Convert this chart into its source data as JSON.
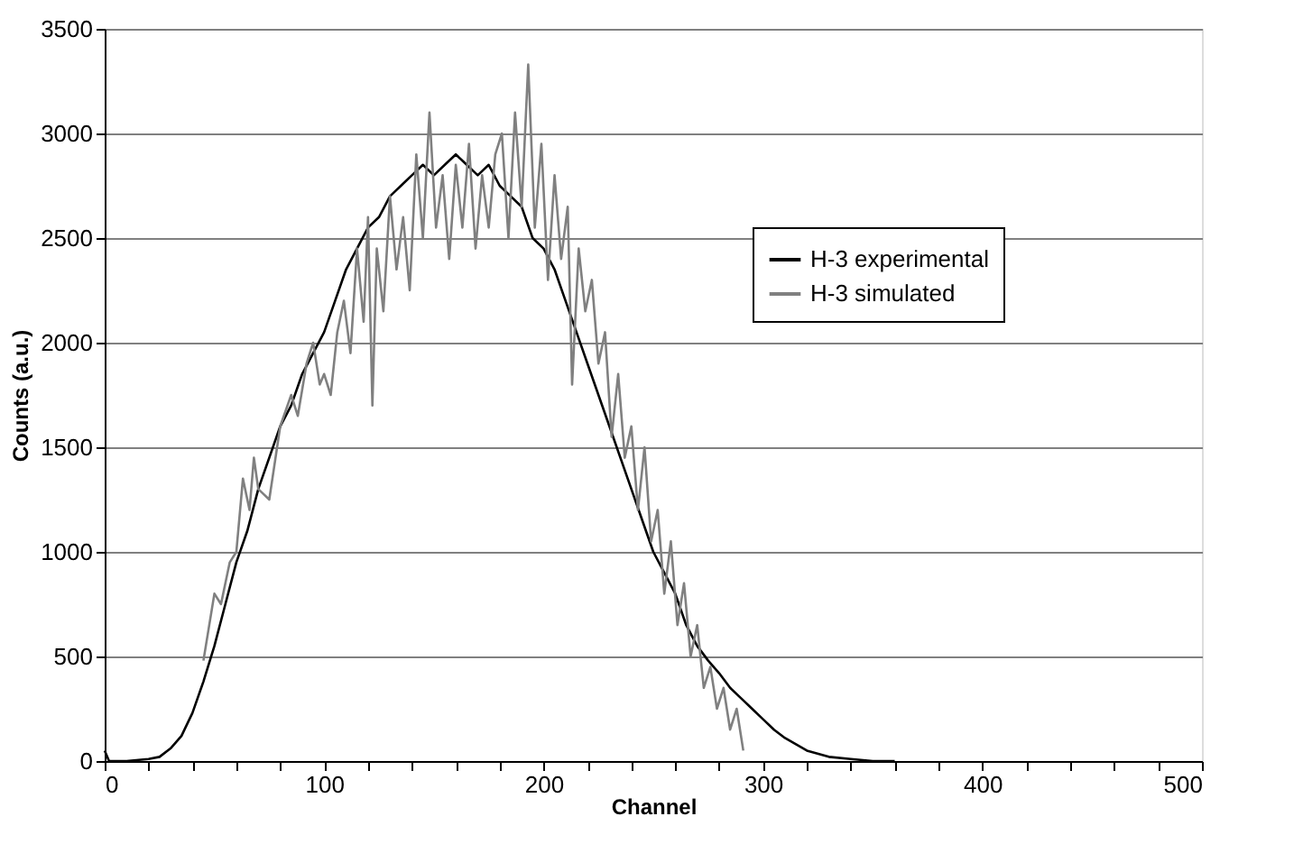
{
  "chart_data": {
    "type": "line",
    "xlabel": "Channel",
    "ylabel": "Counts (a.u.)",
    "xlim": [
      0,
      500
    ],
    "ylim": [
      0,
      3500
    ],
    "xticks": [
      0,
      {
        "value": 20,
        "label": null
      },
      {
        "value": 40,
        "label": null
      },
      {
        "value": 60,
        "label": null
      },
      {
        "value": 80,
        "label": null
      },
      100,
      {
        "value": 120,
        "label": null
      },
      {
        "value": 140,
        "label": null
      },
      {
        "value": 160,
        "label": null
      },
      {
        "value": 180,
        "label": null
      },
      200,
      {
        "value": 220,
        "label": null
      },
      {
        "value": 240,
        "label": null
      },
      {
        "value": 260,
        "label": null
      },
      {
        "value": 280,
        "label": null
      },
      300,
      {
        "value": 320,
        "label": null
      },
      {
        "value": 340,
        "label": null
      },
      {
        "value": 360,
        "label": null
      },
      {
        "value": 380,
        "label": null
      },
      400,
      {
        "value": 420,
        "label": null
      },
      {
        "value": 440,
        "label": null
      },
      {
        "value": 460,
        "label": null
      },
      {
        "value": 480,
        "label": null
      },
      500
    ],
    "yticks": [
      0,
      500,
      1000,
      1500,
      2000,
      2500,
      3000,
      3500
    ],
    "grid": "y",
    "legend": "top right",
    "marker": "none",
    "line_style": "solid",
    "series": [
      {
        "name": "H-3 experimental",
        "color": "#000000",
        "x": [
          0,
          2,
          10,
          20,
          25,
          30,
          35,
          40,
          45,
          50,
          55,
          60,
          65,
          70,
          75,
          80,
          85,
          90,
          95,
          100,
          105,
          110,
          115,
          120,
          125,
          130,
          135,
          140,
          145,
          150,
          155,
          160,
          165,
          170,
          175,
          180,
          185,
          190,
          195,
          200,
          205,
          210,
          215,
          220,
          225,
          230,
          235,
          240,
          245,
          250,
          255,
          260,
          265,
          270,
          275,
          280,
          285,
          290,
          295,
          300,
          305,
          310,
          315,
          320,
          330,
          340,
          350,
          360
        ],
        "values": [
          50,
          0,
          0,
          10,
          20,
          60,
          120,
          230,
          380,
          550,
          750,
          950,
          1100,
          1300,
          1450,
          1600,
          1700,
          1850,
          1950,
          2050,
          2200,
          2350,
          2450,
          2550,
          2600,
          2700,
          2750,
          2800,
          2850,
          2800,
          2850,
          2900,
          2850,
          2800,
          2850,
          2750,
          2700,
          2650,
          2500,
          2450,
          2350,
          2200,
          2050,
          1900,
          1750,
          1600,
          1450,
          1300,
          1150,
          1000,
          900,
          800,
          650,
          550,
          480,
          420,
          350,
          300,
          250,
          200,
          150,
          110,
          80,
          50,
          20,
          10,
          0,
          0
        ]
      },
      {
        "name": "H-3 simulated",
        "color": "#808080",
        "x": [
          45,
          50,
          53,
          57,
          60,
          63,
          66,
          68,
          70,
          75,
          80,
          85,
          88,
          92,
          95,
          98,
          100,
          103,
          106,
          109,
          112,
          115,
          118,
          120,
          122,
          124,
          127,
          130,
          133,
          136,
          139,
          142,
          145,
          148,
          151,
          154,
          157,
          160,
          163,
          166,
          169,
          172,
          175,
          178,
          181,
          184,
          187,
          190,
          193,
          196,
          199,
          202,
          205,
          208,
          211,
          213,
          216,
          219,
          222,
          225,
          228,
          231,
          234,
          237,
          240,
          243,
          246,
          249,
          252,
          255,
          258,
          261,
          264,
          267,
          270,
          273,
          276,
          279,
          282,
          285,
          288,
          291
        ],
        "values": [
          480,
          800,
          750,
          950,
          1000,
          1350,
          1200,
          1450,
          1300,
          1250,
          1600,
          1750,
          1650,
          1900,
          2000,
          1800,
          1850,
          1750,
          2050,
          2200,
          1950,
          2450,
          2100,
          2600,
          1700,
          2450,
          2150,
          2700,
          2350,
          2600,
          2250,
          2900,
          2500,
          3100,
          2550,
          2800,
          2400,
          2850,
          2550,
          2950,
          2450,
          2800,
          2550,
          2900,
          3000,
          2500,
          3100,
          2650,
          3330,
          2550,
          2950,
          2300,
          2800,
          2400,
          2650,
          1800,
          2450,
          2150,
          2300,
          1900,
          2050,
          1550,
          1850,
          1450,
          1600,
          1200,
          1500,
          1050,
          1200,
          800,
          1050,
          650,
          850,
          500,
          650,
          350,
          450,
          250,
          350,
          150,
          250,
          50
        ]
      }
    ]
  }
}
